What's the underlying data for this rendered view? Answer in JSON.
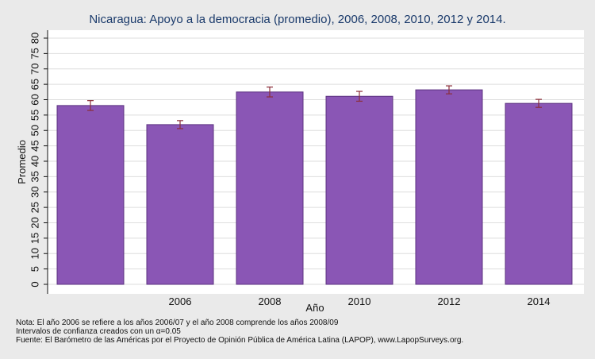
{
  "chart_data": {
    "type": "bar",
    "title": "Nicaragua: Apoyo a la democracia (promedio), 2006, 2008, 2010, 2012 y 2014.",
    "xlabel": "Año",
    "ylabel": "Promedio",
    "categories": [
      "",
      "2006",
      "2008",
      "2010",
      "2012",
      "2014"
    ],
    "values": [
      58.1,
      51.9,
      62.5,
      61.1,
      63.2,
      58.8
    ],
    "error_low": [
      56.5,
      50.6,
      60.9,
      59.5,
      61.9,
      57.5
    ],
    "error_high": [
      59.7,
      53.2,
      64.1,
      62.7,
      64.5,
      60.1
    ],
    "ylim": [
      0,
      80
    ],
    "yticks": [
      0,
      5,
      10,
      15,
      20,
      25,
      30,
      35,
      40,
      45,
      50,
      55,
      60,
      65,
      70,
      75,
      80
    ],
    "ytick_labels": [
      "0",
      "5",
      "10",
      "15",
      "20",
      "25",
      "30",
      "35",
      "40",
      "45",
      "50",
      "55",
      "60",
      "65",
      "70",
      "75",
      "80"
    ],
    "grid": true,
    "colors": {
      "bar": "#8a56b5",
      "bar_edge": "#5c3380",
      "error_bar": "#8b2e3a",
      "grid": "#dedede",
      "background": "#eaeaea",
      "plot_background": "#ffffff",
      "title": "#1a3a6b"
    }
  },
  "notes": [
    "Nota: El año 2006 se refiere a los años 2006/07 y el año 2008 comprende los años 2008/09",
    "Intervalos de confianza creados con un α=0.05",
    "Fuente: El Barómetro de las Américas por el Proyecto de Opinión Pública de América Latina (LAPOP), www.LapopSurveys.org."
  ]
}
